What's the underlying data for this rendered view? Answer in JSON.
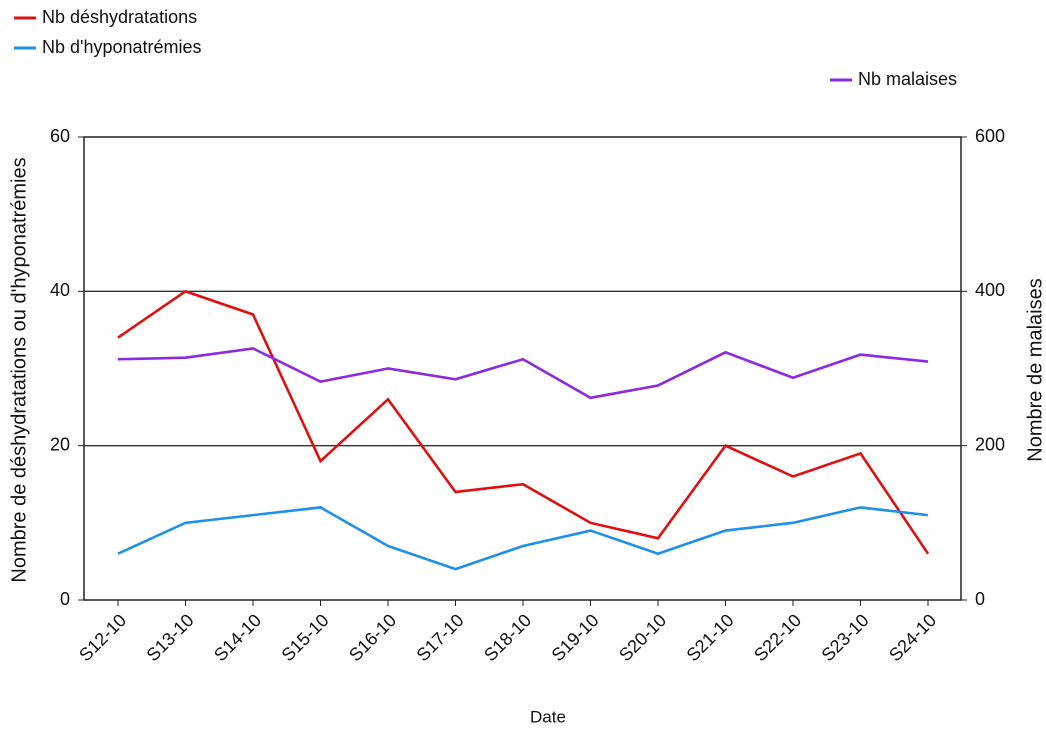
{
  "chart_data": {
    "type": "line",
    "x_label": "Date",
    "y_label": "Nombre de déshydratations ou d'hyponatrémies",
    "y2_label": "Nombre de malaises",
    "categories": [
      "S12-10",
      "S13-10",
      "S14-10",
      "S15-10",
      "S16-10",
      "S17-10",
      "S18-10",
      "S19-10",
      "S20-10",
      "S21-10",
      "S22-10",
      "S23-10",
      "S24-10"
    ],
    "series": [
      {
        "name": "Nb déshydratations",
        "color": "#e01010",
        "values": [
          34,
          40,
          37,
          18,
          26,
          14,
          15,
          10,
          8,
          20,
          16,
          19,
          6
        ]
      },
      {
        "name": "Nb d'hyponatrémies",
        "color": "#1e90e8",
        "values": [
          6,
          10,
          11,
          12,
          7,
          4,
          7,
          9,
          6,
          9,
          10,
          12,
          11
        ]
      },
      {
        "name": "Nb malaises",
        "color": "#8a2be2",
        "axis": "y2",
        "values": [
          312,
          314,
          326,
          283,
          300,
          286,
          312,
          262,
          278,
          321,
          288,
          318,
          309
        ]
      }
    ],
    "ylim": [
      0,
      60
    ],
    "yticks": [
      0,
      20,
      40,
      60
    ],
    "y2lim": [
      0,
      600
    ],
    "y2ticks": [
      0,
      200,
      400,
      600
    ],
    "grid": true
  }
}
